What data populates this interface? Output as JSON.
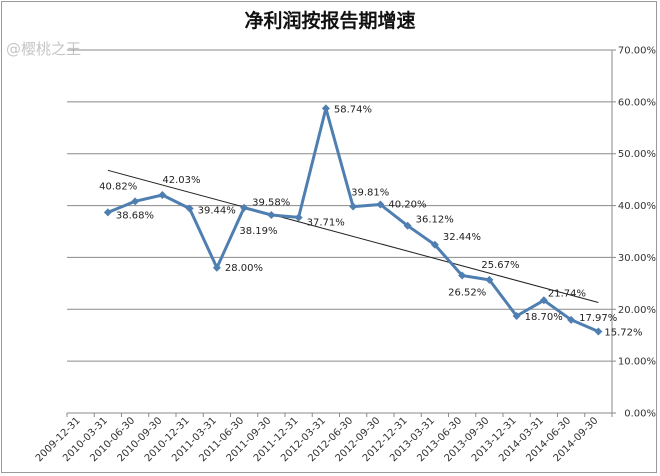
{
  "title": "净利润按报告期增速",
  "watermark": "@樱桃之王",
  "colors": {
    "series": "#4f7fb0",
    "trend": "#222222",
    "grid": "#8a8a8a"
  },
  "chart_data": {
    "type": "line",
    "title": "净利润按报告期增速",
    "x": [
      "2009-12-31",
      "2010-03-31",
      "2010-06-30",
      "2010-09-30",
      "2010-12-31",
      "2011-03-31",
      "2011-06-30",
      "2011-09-30",
      "2011-12-31",
      "2012-03-31",
      "2012-06-30",
      "2012-09-30",
      "2012-12-31",
      "2013-03-31",
      "2013-06-30",
      "2013-09-30",
      "2013-12-31",
      "2014-03-31",
      "2014-06-30",
      "2014-09-30"
    ],
    "series": [
      {
        "values": [
          null,
          38.68,
          40.82,
          42.03,
          39.44,
          28.0,
          39.58,
          38.19,
          37.71,
          58.74,
          39.81,
          40.2,
          36.12,
          32.44,
          26.52,
          25.67,
          18.7,
          21.74,
          17.97,
          15.72
        ]
      }
    ],
    "trendline": {
      "start": [
        1,
        46.8
      ],
      "end": [
        19,
        21.3
      ]
    },
    "data_labels": [
      "",
      "38.68%",
      "40.82%",
      "42.03%",
      "39.44%",
      "28.00%",
      "39.58%",
      "38.19%",
      "37.71%",
      "58.74%",
      "39.81%",
      "40.20%",
      "36.12%",
      "32.44%",
      "26.52%",
      "25.67%",
      "18.70%",
      "21.74%",
      "17.97%",
      "15.72%"
    ],
    "yticks": [
      "0.00%",
      "10.00%",
      "20.00%",
      "30.00%",
      "40.00%",
      "50.00%",
      "60.00%",
      "70.00%"
    ],
    "ylim": [
      0,
      70
    ],
    "y_axis_side": "right",
    "grid": "horizontal",
    "legend": "none"
  }
}
